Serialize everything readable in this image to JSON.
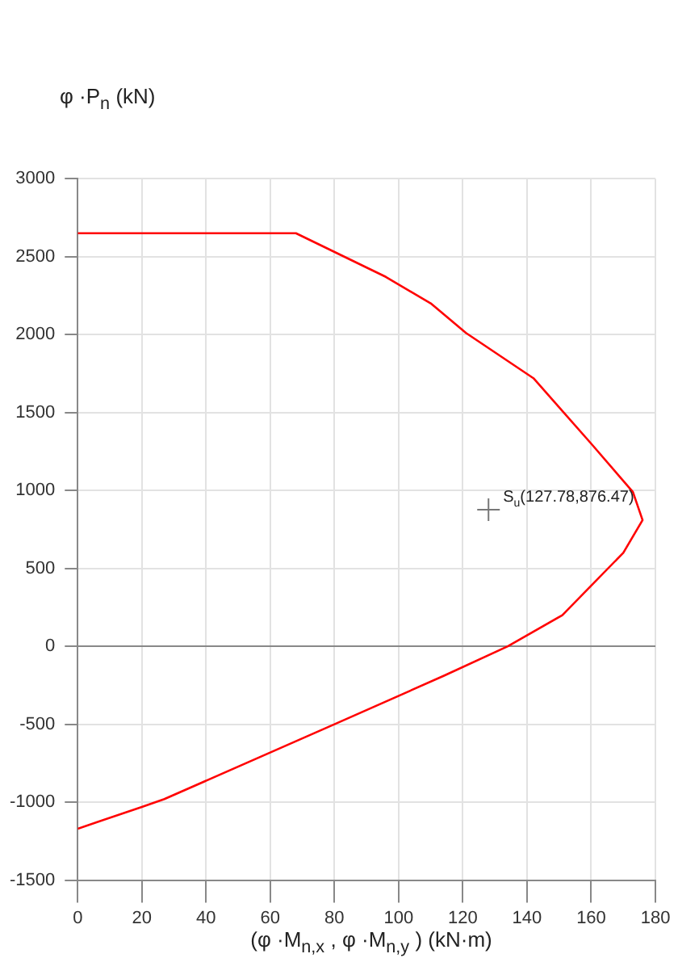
{
  "chart_data": {
    "type": "line",
    "ylabel": "φ ·P$_{n}$ (kN)",
    "xlabel": "(φ ·M$_{n,x}$ , φ ·M$_{n,y}$ ) (kN·m)",
    "xlim": [
      0,
      180
    ],
    "xticks": [
      0,
      20,
      40,
      60,
      80,
      100,
      120,
      140,
      160,
      180
    ],
    "ylim": [
      -1500,
      3000
    ],
    "yticks": [
      -1500,
      -1000,
      -500,
      0,
      500,
      1000,
      1500,
      2000,
      2500,
      3000
    ],
    "grid": true,
    "legend": false,
    "series": [
      {
        "color": "#ff0000",
        "marker": "none",
        "line_style": "solid",
        "x": [
          0,
          68,
          96,
          110,
          121,
          142,
          160,
          173,
          176,
          170,
          151,
          134,
          114,
          80,
          27,
          20,
          0
        ],
        "values": [
          2650,
          2650,
          2370,
          2200,
          2010,
          1720,
          1300,
          990,
          810,
          600,
          200,
          0,
          -190,
          -500,
          -980,
          -1030,
          -1170
        ]
      },
      {
        "type": "scatter",
        "color": "#777777",
        "marker": "cross",
        "x": [
          128
        ],
        "values": [
          876
        ]
      }
    ],
    "annotations": [
      {
        "text": "S$_{u}$(127.78,876.47)",
        "x": 128,
        "y": 876
      }
    ]
  }
}
